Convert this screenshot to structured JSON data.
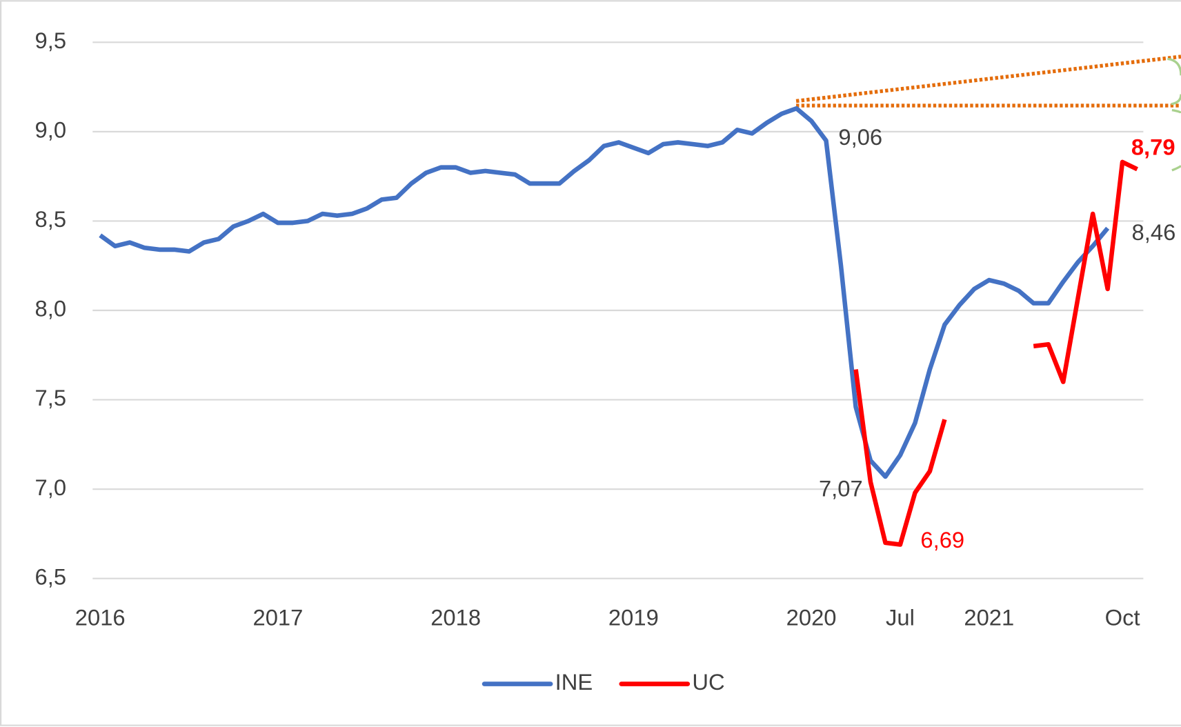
{
  "chart_data": {
    "type": "line",
    "categories": [
      "2016",
      null,
      null,
      null,
      null,
      null,
      null,
      null,
      null,
      null,
      null,
      null,
      "2017",
      null,
      null,
      null,
      null,
      null,
      null,
      null,
      null,
      null,
      null,
      null,
      "2018",
      null,
      null,
      null,
      null,
      null,
      null,
      null,
      null,
      null,
      null,
      null,
      "2019",
      null,
      null,
      null,
      null,
      null,
      null,
      null,
      null,
      null,
      null,
      null,
      "2020",
      null,
      null,
      null,
      null,
      null,
      "Jul",
      null,
      null,
      null,
      null,
      null,
      "2021",
      null,
      null,
      null,
      null,
      null,
      null,
      null,
      null,
      "Oct",
      null
    ],
    "series": [
      {
        "name": "INE",
        "color": "#4472c4",
        "values": [
          8.42,
          8.36,
          8.38,
          8.35,
          8.34,
          8.34,
          8.33,
          8.38,
          8.4,
          8.47,
          8.5,
          8.54,
          8.49,
          8.49,
          8.5,
          8.54,
          8.53,
          8.54,
          8.57,
          8.62,
          8.63,
          8.71,
          8.77,
          8.8,
          8.8,
          8.77,
          8.78,
          8.77,
          8.76,
          8.71,
          8.71,
          8.71,
          8.78,
          8.84,
          8.92,
          8.94,
          8.91,
          8.88,
          8.93,
          8.94,
          8.93,
          8.92,
          8.94,
          9.01,
          8.99,
          9.05,
          9.1,
          9.13,
          9.06,
          8.95,
          8.25,
          7.46,
          7.16,
          7.07,
          7.19,
          7.37,
          7.67,
          7.92,
          8.03,
          8.12,
          8.17,
          8.15,
          8.11,
          8.04,
          8.04,
          8.16,
          8.27,
          8.36,
          8.46,
          null,
          null
        ],
        "value_labels": [
          null,
          null,
          null,
          null,
          null,
          null,
          null,
          null,
          null,
          null,
          null,
          null,
          null,
          null,
          null,
          null,
          null,
          null,
          null,
          null,
          null,
          null,
          null,
          null,
          null,
          null,
          null,
          null,
          null,
          null,
          null,
          null,
          null,
          null,
          null,
          null,
          null,
          null,
          null,
          null,
          null,
          null,
          null,
          null,
          null,
          null,
          null,
          null,
          "9,06",
          null,
          null,
          null,
          null,
          "7,07",
          null,
          null,
          null,
          null,
          null,
          null,
          null,
          null,
          null,
          null,
          null,
          null,
          null,
          null,
          "8,46",
          null,
          null
        ]
      },
      {
        "name": "UC",
        "color": "#ff0000",
        "values": [
          null,
          null,
          null,
          null,
          null,
          null,
          null,
          null,
          null,
          null,
          null,
          null,
          null,
          null,
          null,
          null,
          null,
          null,
          null,
          null,
          null,
          null,
          null,
          null,
          null,
          null,
          null,
          null,
          null,
          null,
          null,
          null,
          null,
          null,
          null,
          null,
          null,
          null,
          null,
          null,
          null,
          null,
          null,
          null,
          null,
          null,
          null,
          null,
          null,
          null,
          null,
          7.67,
          7.04,
          6.7,
          6.69,
          6.98,
          7.1,
          7.39,
          null,
          null,
          null,
          null,
          null,
          7.8,
          7.81,
          7.6,
          8.07,
          8.54,
          8.12,
          8.83,
          8.79
        ],
        "value_labels": [
          null,
          null,
          null,
          null,
          null,
          null,
          null,
          null,
          null,
          null,
          null,
          null,
          null,
          null,
          null,
          null,
          null,
          null,
          null,
          null,
          null,
          null,
          null,
          null,
          null,
          null,
          null,
          null,
          null,
          null,
          null,
          null,
          null,
          null,
          null,
          null,
          null,
          null,
          null,
          null,
          null,
          null,
          null,
          null,
          null,
          null,
          null,
          null,
          null,
          null,
          null,
          null,
          null,
          null,
          "6,69",
          null,
          null,
          null,
          null,
          null,
          null,
          null,
          null,
          null,
          null,
          null,
          null,
          null,
          null,
          null,
          "8,79"
        ]
      }
    ],
    "ylim": [
      6.5,
      9.5
    ],
    "yticks": [
      {
        "value": 6.5,
        "label": "6,5"
      },
      {
        "value": 7.0,
        "label": "7,0"
      },
      {
        "value": 7.5,
        "label": "7,5"
      },
      {
        "value": 8.0,
        "label": "8,0"
      },
      {
        "value": 8.5,
        "label": "8,5"
      },
      {
        "value": 9.0,
        "label": "9,0"
      },
      {
        "value": 9.5,
        "label": "9,5"
      }
    ],
    "grid": true
  }
}
